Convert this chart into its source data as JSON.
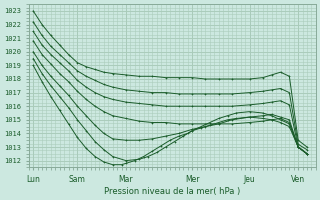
{
  "bg_color": "#cce8e0",
  "grid_color": "#aaccbb",
  "line_color": "#1a5c2a",
  "marker_color": "#1a5c2a",
  "xlabel": "Pression niveau de la mer( hPa )",
  "ylim": [
    1011.5,
    1023.5
  ],
  "xlim": [
    0,
    130
  ],
  "yticks": [
    1012,
    1013,
    1014,
    1015,
    1016,
    1017,
    1018,
    1019,
    1020,
    1021,
    1022,
    1023
  ],
  "xtick_labels": [
    "Lun",
    "Sam",
    "Mar",
    "Mer",
    "Jeu",
    "Ven"
  ],
  "xtick_positions": [
    2,
    22,
    44,
    74,
    100,
    122
  ],
  "vline_positions": [
    2,
    22,
    44,
    74,
    100,
    122
  ],
  "series": [
    {
      "x": [
        2,
        6,
        10,
        14,
        18,
        22,
        26,
        30,
        34,
        38,
        44,
        50,
        56,
        62,
        68,
        74,
        80,
        86,
        92,
        100,
        106,
        110,
        114,
        118,
        122,
        126
      ],
      "y": [
        1023.0,
        1022.0,
        1021.2,
        1020.5,
        1019.8,
        1019.2,
        1018.9,
        1018.7,
        1018.5,
        1018.4,
        1018.3,
        1018.2,
        1018.2,
        1018.1,
        1018.1,
        1018.1,
        1018.0,
        1018.0,
        1018.0,
        1018.0,
        1018.1,
        1018.3,
        1018.5,
        1018.2,
        1013.5,
        1013.0
      ]
    },
    {
      "x": [
        2,
        6,
        10,
        14,
        18,
        22,
        26,
        30,
        34,
        38,
        44,
        50,
        56,
        62,
        68,
        74,
        80,
        86,
        92,
        100,
        106,
        110,
        114,
        118,
        122,
        126
      ],
      "y": [
        1022.2,
        1021.2,
        1020.4,
        1019.8,
        1019.2,
        1018.6,
        1018.2,
        1017.9,
        1017.6,
        1017.4,
        1017.2,
        1017.1,
        1017.0,
        1017.0,
        1016.9,
        1016.9,
        1016.9,
        1016.9,
        1016.9,
        1017.0,
        1017.1,
        1017.2,
        1017.3,
        1017.0,
        1013.2,
        1012.8
      ]
    },
    {
      "x": [
        2,
        6,
        10,
        14,
        18,
        22,
        26,
        30,
        34,
        38,
        44,
        50,
        56,
        62,
        68,
        74,
        80,
        86,
        92,
        100,
        106,
        110,
        114,
        118,
        122,
        126
      ],
      "y": [
        1021.5,
        1020.5,
        1019.8,
        1019.2,
        1018.6,
        1017.9,
        1017.4,
        1017.0,
        1016.7,
        1016.5,
        1016.3,
        1016.2,
        1016.1,
        1016.0,
        1016.0,
        1016.0,
        1016.0,
        1016.0,
        1016.0,
        1016.1,
        1016.2,
        1016.3,
        1016.4,
        1016.1,
        1013.0,
        1012.5
      ]
    },
    {
      "x": [
        2,
        6,
        10,
        14,
        18,
        22,
        26,
        30,
        34,
        38,
        44,
        50,
        56,
        62,
        68,
        74,
        80,
        86,
        92,
        100,
        106,
        110,
        114,
        118,
        122,
        126
      ],
      "y": [
        1020.8,
        1019.8,
        1019.1,
        1018.4,
        1017.8,
        1017.1,
        1016.5,
        1016.0,
        1015.6,
        1015.3,
        1015.1,
        1014.9,
        1014.8,
        1014.8,
        1014.7,
        1014.7,
        1014.7,
        1014.7,
        1014.7,
        1014.8,
        1014.9,
        1015.0,
        1015.1,
        1014.8,
        1013.0,
        1012.5
      ]
    },
    {
      "x": [
        2,
        6,
        10,
        14,
        18,
        22,
        26,
        30,
        34,
        38,
        44,
        50,
        56,
        62,
        68,
        74,
        80,
        86,
        92,
        100,
        106,
        110,
        114,
        118,
        122,
        126
      ],
      "y": [
        1020.0,
        1019.0,
        1018.2,
        1017.5,
        1016.8,
        1016.0,
        1015.3,
        1014.6,
        1014.0,
        1013.6,
        1013.5,
        1013.5,
        1013.6,
        1013.8,
        1014.0,
        1014.3,
        1014.5,
        1014.7,
        1015.0,
        1015.2,
        1015.3,
        1015.4,
        1015.2,
        1015.0,
        1013.0,
        1012.5
      ]
    },
    {
      "x": [
        2,
        6,
        10,
        14,
        18,
        22,
        26,
        30,
        34,
        38,
        44,
        50,
        54,
        58,
        62,
        66,
        70,
        74,
        78,
        82,
        86,
        90,
        94,
        100,
        106,
        110,
        114,
        118,
        122,
        126
      ],
      "y": [
        1019.5,
        1018.4,
        1017.5,
        1016.7,
        1015.9,
        1015.0,
        1014.2,
        1013.4,
        1012.8,
        1012.3,
        1012.0,
        1012.1,
        1012.3,
        1012.6,
        1013.0,
        1013.4,
        1013.8,
        1014.2,
        1014.5,
        1014.8,
        1015.1,
        1015.3,
        1015.5,
        1015.6,
        1015.5,
        1015.3,
        1015.0,
        1014.7,
        1013.0,
        1012.5
      ]
    },
    {
      "x": [
        2,
        6,
        10,
        14,
        18,
        22,
        26,
        30,
        34,
        38,
        42,
        44,
        48,
        52,
        56,
        60,
        64,
        68,
        72,
        74,
        78,
        82,
        86,
        90,
        94,
        100,
        106,
        110,
        114,
        118,
        122,
        126
      ],
      "y": [
        1019.0,
        1017.8,
        1016.7,
        1015.7,
        1014.7,
        1013.7,
        1012.9,
        1012.3,
        1011.9,
        1011.7,
        1011.7,
        1011.8,
        1012.0,
        1012.3,
        1012.7,
        1013.1,
        1013.5,
        1013.8,
        1014.0,
        1014.2,
        1014.4,
        1014.6,
        1014.8,
        1015.0,
        1015.1,
        1015.2,
        1015.1,
        1015.0,
        1014.8,
        1014.5,
        1013.0,
        1012.5
      ]
    }
  ]
}
